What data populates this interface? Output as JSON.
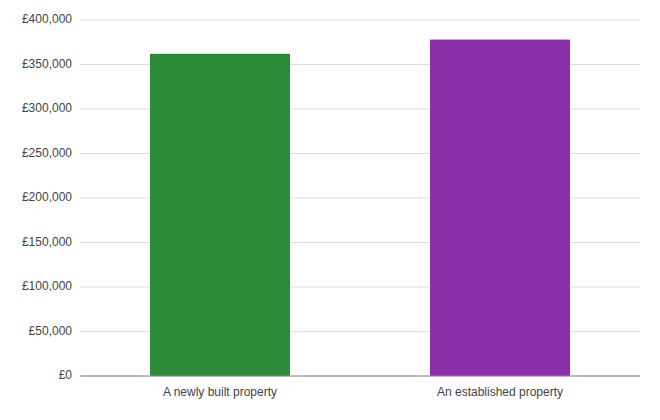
{
  "chart_data": {
    "type": "bar",
    "categories": [
      "A newly built property",
      "An established property"
    ],
    "values": [
      362000,
      378000
    ],
    "colors": [
      "#2e8b3a",
      "#8b2fa8"
    ],
    "ylim": [
      0,
      400000
    ],
    "yticks": [
      {
        "value": 0,
        "label": "£0"
      },
      {
        "value": 50000,
        "label": "£50,000"
      },
      {
        "value": 100000,
        "label": "£100,000"
      },
      {
        "value": 150000,
        "label": "£150,000"
      },
      {
        "value": 200000,
        "label": "£200,000"
      },
      {
        "value": 250000,
        "label": "£250,000"
      },
      {
        "value": 300000,
        "label": "£300,000"
      },
      {
        "value": 350000,
        "label": "£350,000"
      },
      {
        "value": 400000,
        "label": "£400,000"
      }
    ],
    "grid": true
  }
}
